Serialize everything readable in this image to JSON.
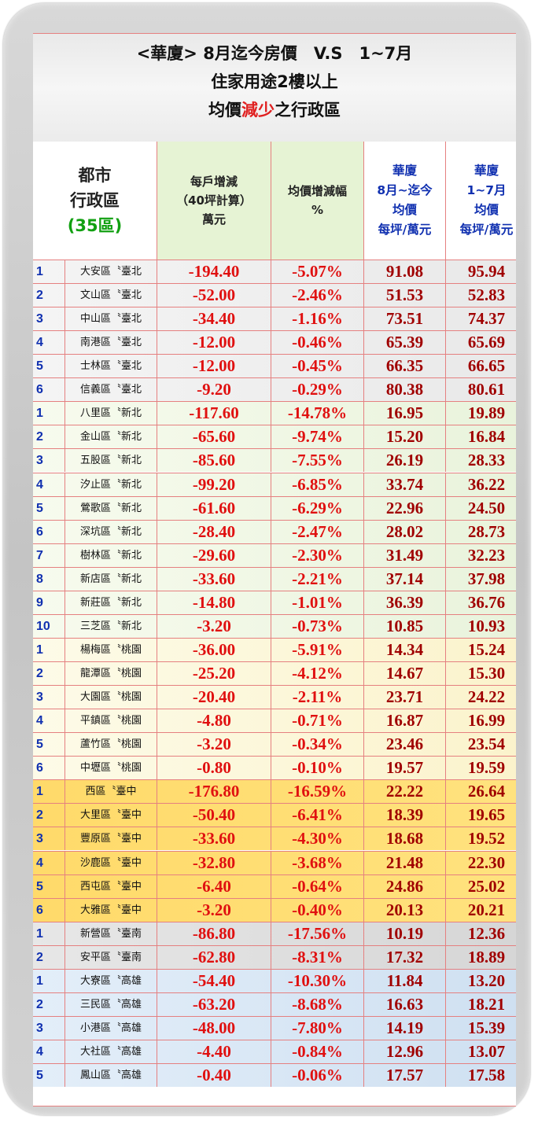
{
  "title": {
    "line1": "<華廈> 8月迄今房價　V.S　1~7月",
    "line2": "住家用途2樓以上",
    "line3_pre": "均價",
    "line3_red": "減少",
    "line3_post": "之行政區"
  },
  "header": {
    "district_line1": "都市",
    "district_line2": "行政區",
    "district_count": "(35區)",
    "change_line1": "每戶增減",
    "change_line2": "（40坪計算）",
    "change_line3": "萬元",
    "pct_line1": "均價增減幅",
    "pct_line2": "%",
    "aug_line1": "華廈",
    "aug_line2": "8月~迄今",
    "aug_line3": "均價",
    "aug_line4": "每坪/萬元",
    "jul_line1": "華廈",
    "jul_line2": "1~7月",
    "jul_line3": "均價",
    "jul_line4": "每坪/萬元"
  },
  "rows": [
    {
      "idx": "1",
      "name": "大安區〝臺北",
      "change": "-194.40",
      "pct": "-5.07%",
      "aug": "91.08",
      "jul": "95.94",
      "group": "taipei"
    },
    {
      "idx": "2",
      "name": "文山區〝臺北",
      "change": "-52.00",
      "pct": "-2.46%",
      "aug": "51.53",
      "jul": "52.83",
      "group": "taipei"
    },
    {
      "idx": "3",
      "name": "中山區〝臺北",
      "change": "-34.40",
      "pct": "-1.16%",
      "aug": "73.51",
      "jul": "74.37",
      "group": "taipei"
    },
    {
      "idx": "4",
      "name": "南港區〝臺北",
      "change": "-12.00",
      "pct": "-0.46%",
      "aug": "65.39",
      "jul": "65.69",
      "group": "taipei"
    },
    {
      "idx": "5",
      "name": "士林區〝臺北",
      "change": "-12.00",
      "pct": "-0.45%",
      "aug": "66.35",
      "jul": "66.65",
      "group": "taipei"
    },
    {
      "idx": "6",
      "name": "信義區〝臺北",
      "change": "-9.20",
      "pct": "-0.29%",
      "aug": "80.38",
      "jul": "80.61",
      "group": "taipei"
    },
    {
      "idx": "1",
      "name": "八里區〝新北",
      "change": "-117.60",
      "pct": "-14.78%",
      "aug": "16.95",
      "jul": "19.89",
      "group": "newtaipei"
    },
    {
      "idx": "2",
      "name": "金山區〝新北",
      "change": "-65.60",
      "pct": "-9.74%",
      "aug": "15.20",
      "jul": "16.84",
      "group": "newtaipei"
    },
    {
      "idx": "3",
      "name": "五股區〝新北",
      "change": "-85.60",
      "pct": "-7.55%",
      "aug": "26.19",
      "jul": "28.33",
      "group": "newtaipei"
    },
    {
      "idx": "4",
      "name": "汐止區〝新北",
      "change": "-99.20",
      "pct": "-6.85%",
      "aug": "33.74",
      "jul": "36.22",
      "group": "newtaipei"
    },
    {
      "idx": "5",
      "name": "鶯歌區〝新北",
      "change": "-61.60",
      "pct": "-6.29%",
      "aug": "22.96",
      "jul": "24.50",
      "group": "newtaipei"
    },
    {
      "idx": "6",
      "name": "深坑區〝新北",
      "change": "-28.40",
      "pct": "-2.47%",
      "aug": "28.02",
      "jul": "28.73",
      "group": "newtaipei"
    },
    {
      "idx": "7",
      "name": "樹林區〝新北",
      "change": "-29.60",
      "pct": "-2.30%",
      "aug": "31.49",
      "jul": "32.23",
      "group": "newtaipei"
    },
    {
      "idx": "8",
      "name": "新店區〝新北",
      "change": "-33.60",
      "pct": "-2.21%",
      "aug": "37.14",
      "jul": "37.98",
      "group": "newtaipei"
    },
    {
      "idx": "9",
      "name": "新莊區〝新北",
      "change": "-14.80",
      "pct": "-1.01%",
      "aug": "36.39",
      "jul": "36.76",
      "group": "newtaipei"
    },
    {
      "idx": "10",
      "name": "三芝區〝新北",
      "change": "-3.20",
      "pct": "-0.73%",
      "aug": "10.85",
      "jul": "10.93",
      "group": "newtaipei"
    },
    {
      "idx": "1",
      "name": "楊梅區〝桃園",
      "change": "-36.00",
      "pct": "-5.91%",
      "aug": "14.34",
      "jul": "15.24",
      "group": "taoyuan"
    },
    {
      "idx": "2",
      "name": "龍潭區〝桃園",
      "change": "-25.20",
      "pct": "-4.12%",
      "aug": "14.67",
      "jul": "15.30",
      "group": "taoyuan"
    },
    {
      "idx": "3",
      "name": "大園區〝桃園",
      "change": "-20.40",
      "pct": "-2.11%",
      "aug": "23.71",
      "jul": "24.22",
      "group": "taoyuan"
    },
    {
      "idx": "4",
      "name": "平鎮區〝桃園",
      "change": "-4.80",
      "pct": "-0.71%",
      "aug": "16.87",
      "jul": "16.99",
      "group": "taoyuan"
    },
    {
      "idx": "5",
      "name": "蘆竹區〝桃園",
      "change": "-3.20",
      "pct": "-0.34%",
      "aug": "23.46",
      "jul": "23.54",
      "group": "taoyuan"
    },
    {
      "idx": "6",
      "name": "中壢區〝桃園",
      "change": "-0.80",
      "pct": "-0.10%",
      "aug": "19.57",
      "jul": "19.59",
      "group": "taoyuan"
    },
    {
      "idx": "1",
      "name": "西區〝臺中",
      "change": "-176.80",
      "pct": "-16.59%",
      "aug": "22.22",
      "jul": "26.64",
      "group": "taichung"
    },
    {
      "idx": "2",
      "name": "大里區〝臺中",
      "change": "-50.40",
      "pct": "-6.41%",
      "aug": "18.39",
      "jul": "19.65",
      "group": "taichung"
    },
    {
      "idx": "3",
      "name": "豐原區〝臺中",
      "change": "-33.60",
      "pct": "-4.30%",
      "aug": "18.68",
      "jul": "19.52",
      "group": "taichung"
    },
    {
      "idx": "4",
      "name": "沙鹿區〝臺中",
      "change": "-32.80",
      "pct": "-3.68%",
      "aug": "21.48",
      "jul": "22.30",
      "group": "taichung"
    },
    {
      "idx": "5",
      "name": "西屯區〝臺中",
      "change": "-6.40",
      "pct": "-0.64%",
      "aug": "24.86",
      "jul": "25.02",
      "group": "taichung"
    },
    {
      "idx": "6",
      "name": "大雅區〝臺中",
      "change": "-3.20",
      "pct": "-0.40%",
      "aug": "20.13",
      "jul": "20.21",
      "group": "taichung"
    },
    {
      "idx": "1",
      "name": "新營區〝臺南",
      "change": "-86.80",
      "pct": "-17.56%",
      "aug": "10.19",
      "jul": "12.36",
      "group": "tainan"
    },
    {
      "idx": "2",
      "name": "安平區〝臺南",
      "change": "-62.80",
      "pct": "-8.31%",
      "aug": "17.32",
      "jul": "18.89",
      "group": "tainan"
    },
    {
      "idx": "1",
      "name": "大寮區〝高雄",
      "change": "-54.40",
      "pct": "-10.30%",
      "aug": "11.84",
      "jul": "13.20",
      "group": "kaohsiung"
    },
    {
      "idx": "2",
      "name": "三民區〝高雄",
      "change": "-63.20",
      "pct": "-8.68%",
      "aug": "16.63",
      "jul": "18.21",
      "group": "kaohsiung"
    },
    {
      "idx": "3",
      "name": "小港區〝高雄",
      "change": "-48.00",
      "pct": "-7.80%",
      "aug": "14.19",
      "jul": "15.39",
      "group": "kaohsiung"
    },
    {
      "idx": "4",
      "name": "大社區〝高雄",
      "change": "-4.40",
      "pct": "-0.84%",
      "aug": "12.96",
      "jul": "13.07",
      "group": "kaohsiung"
    },
    {
      "idx": "5",
      "name": "鳳山區〝高雄",
      "change": "-0.40",
      "pct": "-0.06%",
      "aug": "17.57",
      "jul": "17.58",
      "group": "kaohsiung"
    }
  ]
}
